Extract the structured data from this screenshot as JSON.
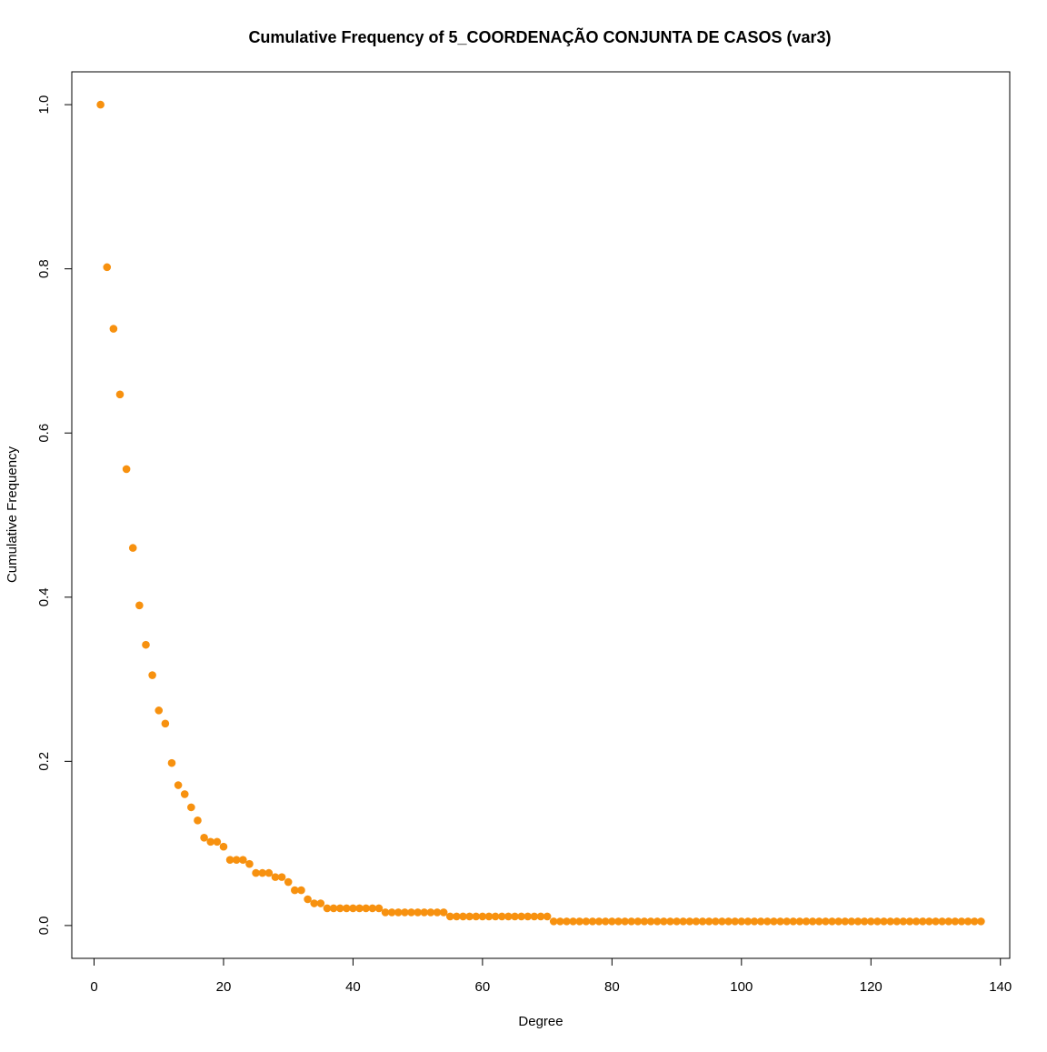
{
  "chart_data": {
    "type": "scatter",
    "title": "Cumulative Frequency of 5_COORDENAÇÃO CONJUNTA DE CASOS (var3)",
    "xlabel": "Degree",
    "ylabel": "Cumulative Frequency",
    "xlim": [
      -3.44,
      141.44
    ],
    "ylim": [
      -0.04,
      1.04
    ],
    "x_ticks": [
      0,
      20,
      40,
      60,
      80,
      100,
      120,
      140
    ],
    "x_tick_labels": [
      "0",
      "20",
      "40",
      "60",
      "80",
      "100",
      "120",
      "140"
    ],
    "y_ticks": [
      0.0,
      0.2,
      0.4,
      0.6,
      0.8,
      1.0
    ],
    "y_tick_labels": [
      "0.0",
      "0.2",
      "0.4",
      "0.6",
      "0.8",
      "1.0"
    ],
    "grid": false,
    "marker_color": "#f7910f",
    "series": [
      {
        "x": [
          1,
          2,
          3,
          4,
          5,
          6,
          7,
          8,
          9,
          10,
          11,
          12,
          13,
          14,
          15,
          16,
          17,
          18,
          19,
          20,
          21,
          22,
          23,
          24,
          25,
          26,
          27,
          28,
          29,
          30,
          31,
          32,
          33,
          34,
          35,
          36,
          37,
          38,
          39,
          40,
          41,
          42,
          43,
          44,
          45,
          46,
          47,
          48,
          49,
          50,
          51,
          52,
          53,
          54,
          55,
          56,
          57,
          58,
          59,
          60,
          61,
          62,
          63,
          64,
          65,
          66,
          67,
          68,
          69,
          70,
          71,
          72,
          73,
          74,
          75,
          76,
          77,
          78,
          79,
          80,
          81,
          82,
          83,
          84,
          85,
          86,
          87,
          88,
          89,
          90,
          91,
          92,
          93,
          94,
          95,
          96,
          97,
          98,
          99,
          100,
          101,
          102,
          103,
          104,
          105,
          106,
          107,
          108,
          109,
          110,
          111,
          112,
          113,
          114,
          115,
          116,
          117,
          118,
          119,
          120,
          121,
          122,
          123,
          124,
          125,
          126,
          127,
          128,
          129,
          130,
          131,
          132,
          133,
          134,
          135,
          136,
          137
        ],
        "y": [
          1.0,
          0.802,
          0.727,
          0.647,
          0.556,
          0.46,
          0.39,
          0.342,
          0.305,
          0.262,
          0.246,
          0.198,
          0.171,
          0.16,
          0.144,
          0.128,
          0.107,
          0.102,
          0.102,
          0.096,
          0.08,
          0.08,
          0.08,
          0.075,
          0.064,
          0.064,
          0.064,
          0.059,
          0.059,
          0.053,
          0.043,
          0.043,
          0.032,
          0.027,
          0.027,
          0.021,
          0.021,
          0.021,
          0.021,
          0.021,
          0.021,
          0.021,
          0.021,
          0.021,
          0.016,
          0.016,
          0.016,
          0.016,
          0.016,
          0.016,
          0.016,
          0.016,
          0.016,
          0.016,
          0.011,
          0.011,
          0.011,
          0.011,
          0.011,
          0.011,
          0.011,
          0.011,
          0.011,
          0.011,
          0.011,
          0.011,
          0.011,
          0.011,
          0.011,
          0.011,
          0.005,
          0.005,
          0.005,
          0.005,
          0.005,
          0.005,
          0.005,
          0.005,
          0.005,
          0.005,
          0.005,
          0.005,
          0.005,
          0.005,
          0.005,
          0.005,
          0.005,
          0.005,
          0.005,
          0.005,
          0.005,
          0.005,
          0.005,
          0.005,
          0.005,
          0.005,
          0.005,
          0.005,
          0.005,
          0.005,
          0.005,
          0.005,
          0.005,
          0.005,
          0.005,
          0.005,
          0.005,
          0.005,
          0.005,
          0.005,
          0.005,
          0.005,
          0.005,
          0.005,
          0.005,
          0.005,
          0.005,
          0.005,
          0.005,
          0.005,
          0.005,
          0.005,
          0.005,
          0.005,
          0.005,
          0.005,
          0.005,
          0.005,
          0.005,
          0.005,
          0.005,
          0.005,
          0.005,
          0.005,
          0.005,
          0.005,
          0.005
        ]
      }
    ]
  }
}
